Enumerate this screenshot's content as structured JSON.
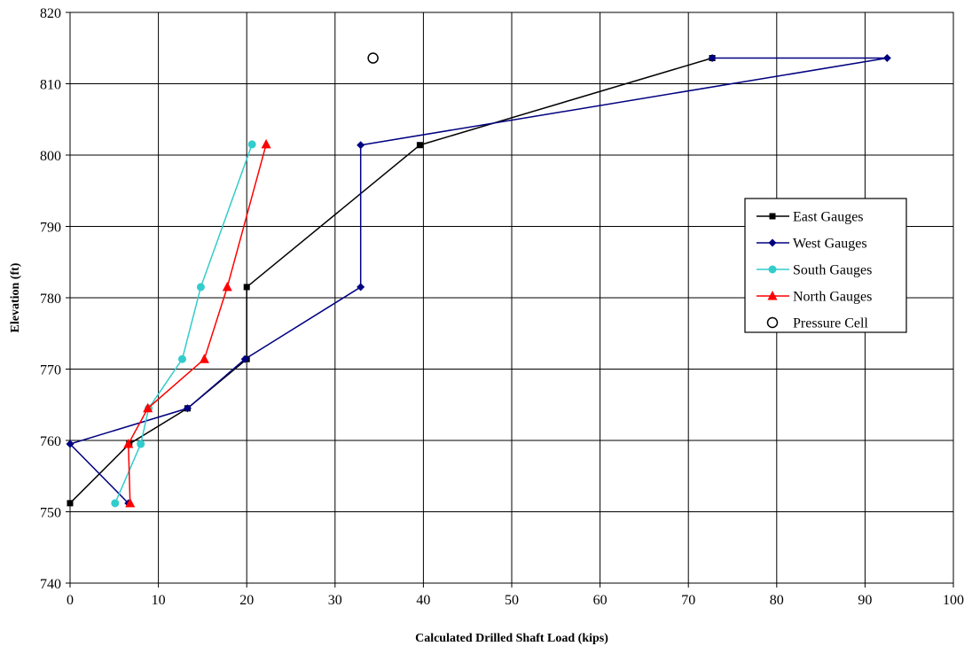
{
  "chart_data": {
    "type": "line",
    "title": "",
    "xlabel": "Calculated Drilled Shaft Load (kips)",
    "ylabel": "Elevation (ft)",
    "xlim": [
      0,
      100
    ],
    "ylim": [
      740,
      820
    ],
    "xticks": [
      0,
      10,
      20,
      30,
      40,
      50,
      60,
      70,
      80,
      90,
      100
    ],
    "yticks": [
      740,
      750,
      760,
      770,
      780,
      790,
      800,
      810,
      820
    ],
    "grid": true,
    "legend_position": "right",
    "series": [
      {
        "name": "East Gauges",
        "color": "#000000",
        "marker": "square",
        "points": [
          [
            0,
            751.2
          ],
          [
            6.7,
            759.5
          ],
          [
            13.3,
            764.5
          ],
          [
            20,
            771.4
          ],
          [
            20,
            781.5
          ],
          [
            39.6,
            801.4
          ],
          [
            72.7,
            813.6
          ]
        ]
      },
      {
        "name": "West Gauges",
        "color": "#000080",
        "marker": "diamond",
        "points": [
          [
            6.6,
            751.2
          ],
          [
            0,
            759.5
          ],
          [
            13.3,
            764.5
          ],
          [
            19.8,
            771.4
          ],
          [
            32.9,
            781.5
          ],
          [
            32.9,
            801.4
          ],
          [
            92.5,
            813.6
          ],
          [
            72.7,
            813.6
          ]
        ]
      },
      {
        "name": "South Gauges",
        "color": "#33CCCC",
        "marker": "circle",
        "points": [
          [
            5.1,
            751.2
          ],
          [
            8,
            759.5
          ],
          [
            8.9,
            764.5
          ],
          [
            12.7,
            771.4
          ],
          [
            14.8,
            781.5
          ],
          [
            20.6,
            801.5
          ]
        ]
      },
      {
        "name": "North Gauges",
        "color": "#FF0000",
        "marker": "triangle",
        "points": [
          [
            6.8,
            751.2
          ],
          [
            6.6,
            759.5
          ],
          [
            8.8,
            764.5
          ],
          [
            15.2,
            771.4
          ],
          [
            17.8,
            781.5
          ],
          [
            22.2,
            801.5
          ]
        ]
      },
      {
        "name": "Pressure Cell",
        "color": "#000000",
        "marker": "open-circle",
        "points": [
          [
            34.3,
            813.6
          ]
        ]
      }
    ]
  }
}
